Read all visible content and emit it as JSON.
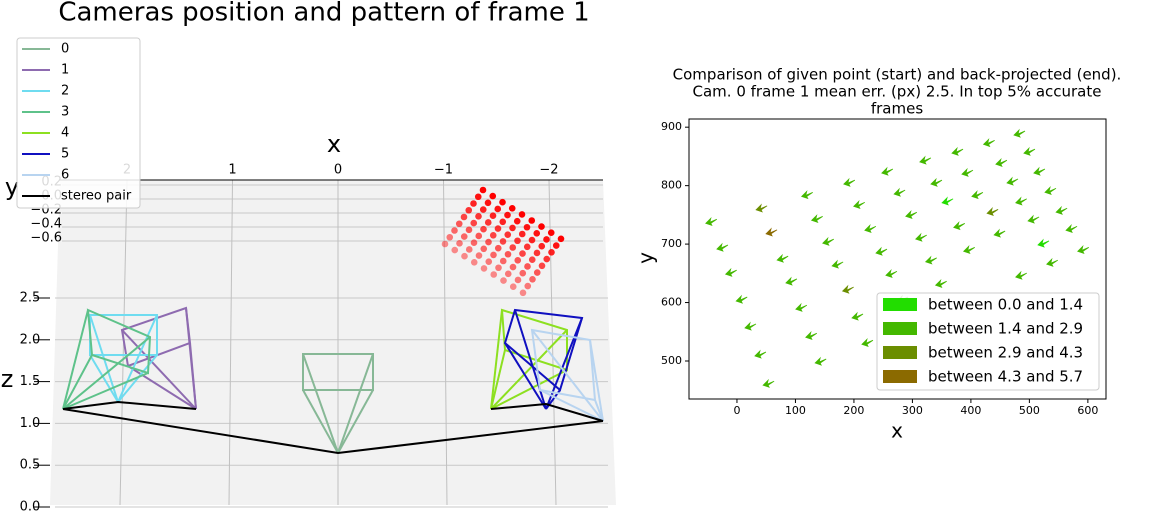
{
  "chart_data": [
    {
      "type": "wireframe",
      "title": "Cameras position and pattern of frame 1",
      "xlabel": "x",
      "ylabel": "y",
      "zlabel": "z",
      "xticks": [
        2,
        1,
        0,
        {
          "value": -1,
          "label": "−1"
        },
        {
          "value": -2,
          "label": "−2"
        }
      ],
      "yticks": [
        0.2,
        {
          "value": 0,
          "label": "0.0"
        },
        {
          "value": -0.2,
          "label": "−0.2"
        },
        {
          "value": -0.4,
          "label": "−0.4"
        },
        {
          "value": -0.6,
          "label": "−0.6"
        }
      ],
      "zticks": [
        {
          "value": 0,
          "label": "0.0"
        },
        0.5,
        {
          "value": 1,
          "label": "1.0"
        },
        1.5,
        {
          "value": 2,
          "label": "2.0"
        },
        2.5
      ],
      "series": [
        {
          "name": "0",
          "color": "#87b896"
        },
        {
          "name": "1",
          "color": "#8e6bb0"
        },
        {
          "name": "2",
          "color": "#6fdcf0"
        },
        {
          "name": "3",
          "color": "#5ec28a"
        },
        {
          "name": "4",
          "color": "#8de020"
        },
        {
          "name": "5",
          "color": "#1010c0"
        },
        {
          "name": "6",
          "color": "#b8d4f0"
        },
        {
          "name": "stereo pair",
          "color": "#000000"
        }
      ],
      "pattern_color": "#ff0000",
      "legend": "upper left"
    },
    {
      "type": "quiver",
      "title": [
        "Comparison of given point (start) and back-projected (end).",
        "Cam. 0 frame 1 mean err. (px) 2.5. In top 5% accurate",
        "frames"
      ],
      "xlabel": "x",
      "ylabel": "y",
      "xlim": [
        -82,
        631
      ],
      "ylim": [
        435,
        914
      ],
      "xticks": [
        0,
        100,
        200,
        300,
        400,
        500,
        600
      ],
      "yticks": [
        500,
        600,
        700,
        800,
        900
      ],
      "legend": "lower right",
      "series": [
        {
          "name": "between 0.0 and 1.4",
          "color": "#22dd00",
          "x": [
            361,
            525
          ],
          "y": [
            774,
            702
          ]
        },
        {
          "name": "between 1.4 and 2.9",
          "color": "#44b800",
          "x": [
            -43,
            -24,
            -9,
            9,
            24,
            41,
            55,
            79,
            94,
            111,
            128,
            144,
            121,
            138,
            157,
            173,
            207,
            224,
            193,
            210,
            229,
            248,
            265,
            284,
            258,
            279,
            299,
            316,
            333,
            350,
            323,
            342,
            381,
            398,
            378,
            395,
            412,
            450,
            432,
            453,
            472,
            487,
            508,
            484,
            501,
            518,
            537,
            556,
            573,
            593,
            540,
            487
          ],
          "y": [
            739,
            695,
            652,
            606,
            560,
            512,
            462,
            676,
            637,
            592,
            544,
            500,
            785,
            744,
            705,
            666,
            577,
            532,
            806,
            768,
            727,
            688,
            650,
            606,
            825,
            789,
            751,
            712,
            673,
            633,
            844,
            806,
            732,
            691,
            859,
            823,
            785,
            719,
            874,
            840,
            808,
            774,
            743,
            890,
            859,
            825,
            792,
            758,
            727,
            691,
            669,
            647
          ]
        },
        {
          "name": "between 2.9 and 4.3",
          "color": "#6b8e00",
          "x": [
            43,
            191,
            438
          ],
          "y": [
            762,
            623,
            756
          ]
        },
        {
          "name": "between 4.3 and 5.7",
          "color": "#8b6a00",
          "x": [
            60
          ],
          "y": [
            721
          ]
        }
      ]
    }
  ]
}
